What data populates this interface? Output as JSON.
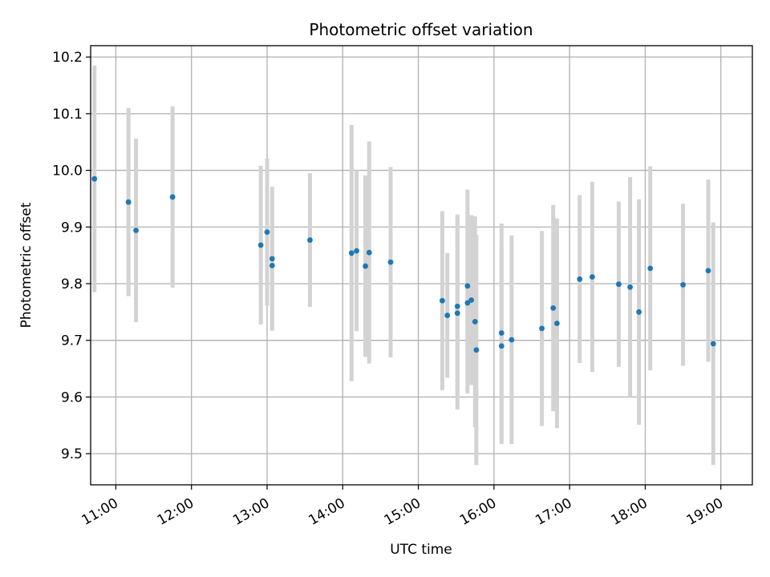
{
  "chart_data": {
    "type": "scatter",
    "title": "Photometric offset variation",
    "xlabel": "UTC time",
    "ylabel": "Photometric offset",
    "x_range": [
      "10:40",
      "19:25"
    ],
    "y_range": [
      9.445,
      10.22
    ],
    "grid": true,
    "x_ticks": [
      "11:00",
      "12:00",
      "13:00",
      "14:00",
      "15:00",
      "16:00",
      "17:00",
      "18:00",
      "19:00"
    ],
    "y_ticks": [
      "9.5",
      "9.6",
      "9.7",
      "9.8",
      "9.9",
      "10.0",
      "10.1",
      "10.2"
    ],
    "colors": {
      "point": "#1f77b4",
      "errorbar": "#d3d3d3",
      "grid": "#b0b0b0",
      "axes": "#000000"
    },
    "series": [
      {
        "points": [
          {
            "x": "10:43",
            "y": 9.985,
            "err": 0.2
          },
          {
            "x": "11:10",
            "y": 9.944,
            "err": 0.166
          },
          {
            "x": "11:16",
            "y": 9.894,
            "err": 0.162
          },
          {
            "x": "11:45",
            "y": 9.953,
            "err": 0.16
          },
          {
            "x": "12:55",
            "y": 9.868,
            "err": 0.14
          },
          {
            "x": "13:00",
            "y": 9.891,
            "err": 0.13
          },
          {
            "x": "13:04",
            "y": 9.844,
            "err": 0.127
          },
          {
            "x": "13:04",
            "y": 9.832,
            "err": 0.115
          },
          {
            "x": "13:34",
            "y": 9.877,
            "err": 0.118
          },
          {
            "x": "14:07",
            "y": 9.854,
            "err": 0.226
          },
          {
            "x": "14:11",
            "y": 9.858,
            "err": 0.142
          },
          {
            "x": "14:18",
            "y": 9.831,
            "err": 0.16
          },
          {
            "x": "14:21",
            "y": 9.855,
            "err": 0.196
          },
          {
            "x": "14:38",
            "y": 9.838,
            "err": 0.168
          },
          {
            "x": "15:19",
            "y": 9.77,
            "err": 0.158
          },
          {
            "x": "15:23",
            "y": 9.744,
            "err": 0.11
          },
          {
            "x": "15:31",
            "y": 9.76,
            "err": 0.162
          },
          {
            "x": "15:31",
            "y": 9.748,
            "err": 0.17
          },
          {
            "x": "15:39",
            "y": 9.796,
            "err": 0.17
          },
          {
            "x": "15:39",
            "y": 9.766,
            "err": 0.16
          },
          {
            "x": "15:42",
            "y": 9.771,
            "err": 0.15
          },
          {
            "x": "15:45",
            "y": 9.733,
            "err": 0.186
          },
          {
            "x": "15:46",
            "y": 9.683,
            "err": 0.203
          },
          {
            "x": "16:06",
            "y": 9.713,
            "err": 0.193
          },
          {
            "x": "16:06",
            "y": 9.69,
            "err": 0.173
          },
          {
            "x": "16:14",
            "y": 9.701,
            "err": 0.184
          },
          {
            "x": "16:38",
            "y": 9.721,
            "err": 0.172
          },
          {
            "x": "16:47",
            "y": 9.757,
            "err": 0.182
          },
          {
            "x": "16:50",
            "y": 9.73,
            "err": 0.185
          },
          {
            "x": "17:08",
            "y": 9.808,
            "err": 0.148
          },
          {
            "x": "17:18",
            "y": 9.812,
            "err": 0.168
          },
          {
            "x": "17:39",
            "y": 9.799,
            "err": 0.146
          },
          {
            "x": "17:48",
            "y": 9.794,
            "err": 0.194
          },
          {
            "x": "17:55",
            "y": 9.75,
            "err": 0.199
          },
          {
            "x": "18:04",
            "y": 9.827,
            "err": 0.18
          },
          {
            "x": "18:30",
            "y": 9.798,
            "err": 0.143
          },
          {
            "x": "18:50",
            "y": 9.823,
            "err": 0.161
          },
          {
            "x": "18:54",
            "y": 9.694,
            "err": 0.214
          }
        ]
      }
    ]
  }
}
